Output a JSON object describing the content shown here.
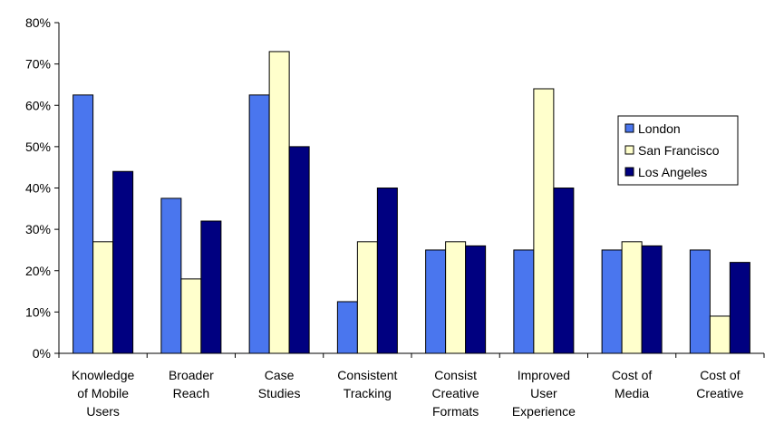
{
  "chart_data": {
    "type": "bar",
    "title": "",
    "xlabel": "",
    "ylabel": "",
    "ylim": [
      0,
      0.8
    ],
    "yticks": [
      "0%",
      "10%",
      "20%",
      "30%",
      "40%",
      "50%",
      "60%",
      "70%",
      "80%"
    ],
    "grid": false,
    "legend_position": "right",
    "categories": [
      [
        "Knowledge",
        "of Mobile",
        "Users"
      ],
      [
        "Broader",
        "Reach"
      ],
      [
        "Case",
        "Studies"
      ],
      [
        "Consistent",
        "Tracking"
      ],
      [
        "Consist",
        "Creative",
        "Formats"
      ],
      [
        "Improved",
        "User",
        "Experience"
      ],
      [
        "Cost of",
        "Media"
      ],
      [
        "Cost of",
        "Creative"
      ]
    ],
    "series": [
      {
        "name": "London",
        "color": "#4A76EE",
        "values": [
          0.625,
          0.375,
          0.625,
          0.125,
          0.25,
          0.25,
          0.25,
          0.25
        ]
      },
      {
        "name": "San Francisco",
        "color": "#FFFFCC",
        "values": [
          0.27,
          0.18,
          0.73,
          0.27,
          0.27,
          0.64,
          0.27,
          0.09
        ]
      },
      {
        "name": "Los Angeles",
        "color": "#000080",
        "values": [
          0.44,
          0.32,
          0.5,
          0.4,
          0.26,
          0.4,
          0.26,
          0.22
        ]
      }
    ]
  }
}
